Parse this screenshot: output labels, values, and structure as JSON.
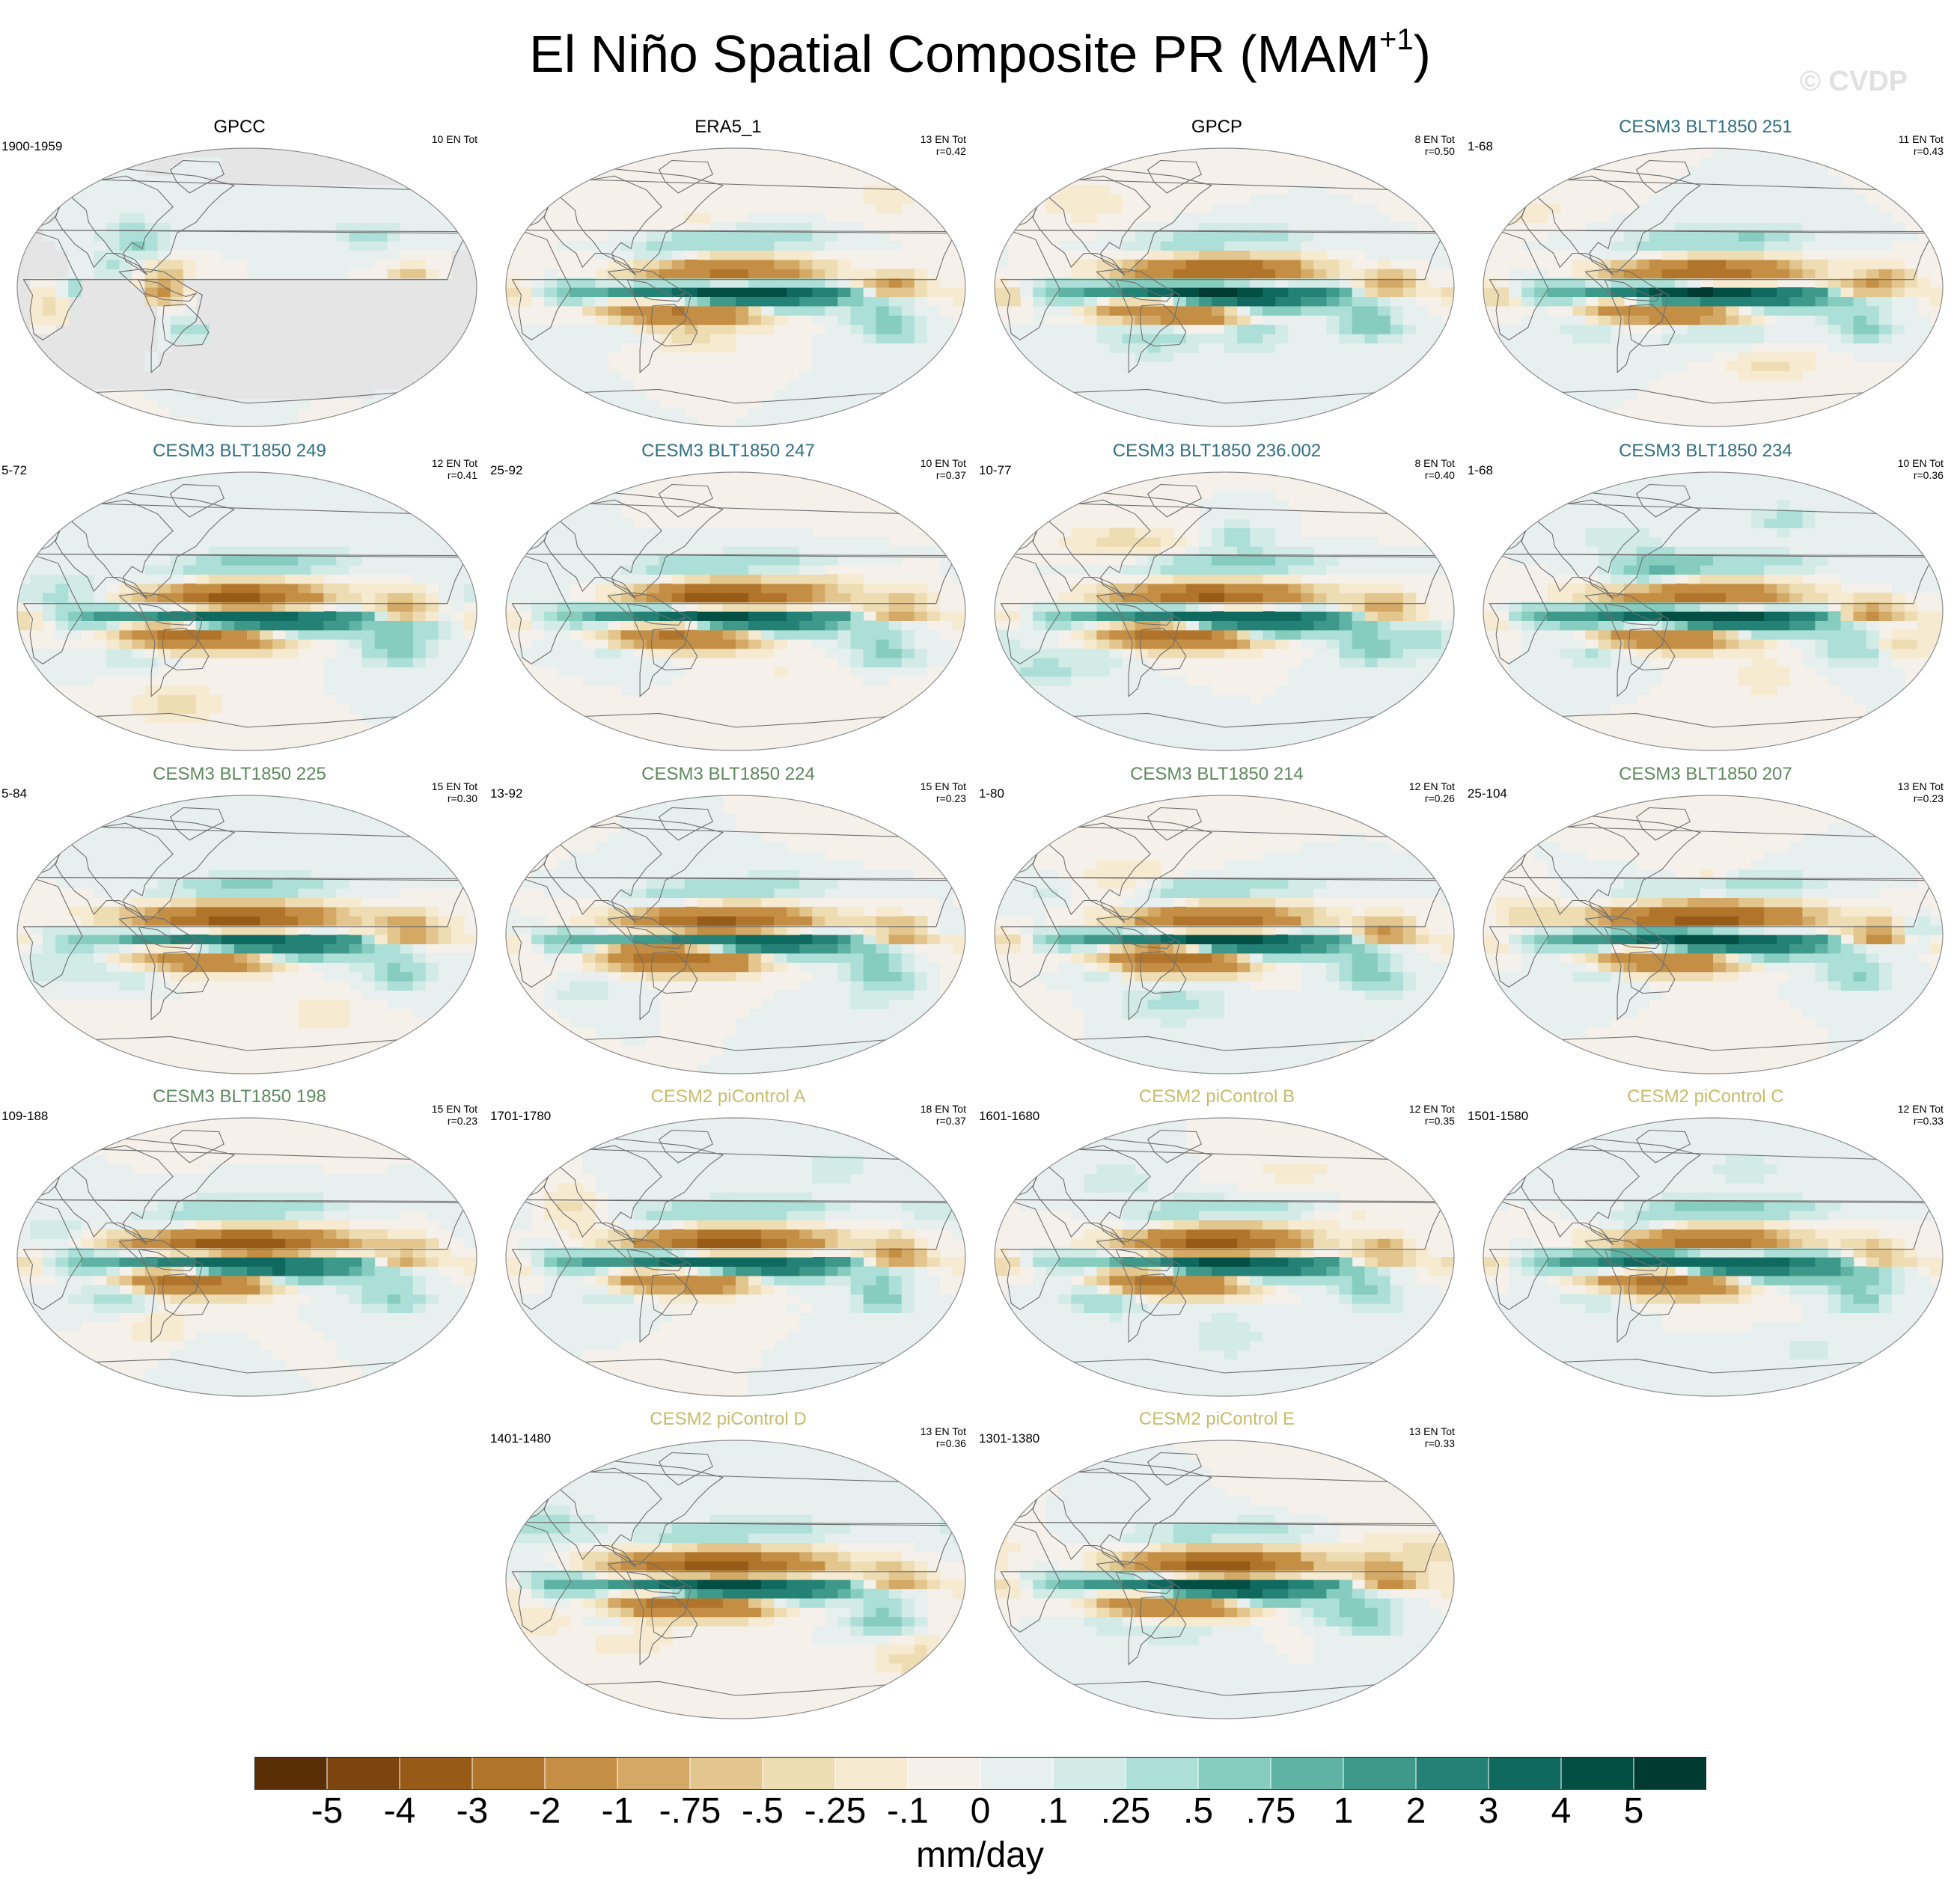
{
  "title": {
    "main": "El Niño Spatial Composite PR (MAM",
    "superscript": "+1",
    "close": ")"
  },
  "watermark": "© CVDP",
  "colors": {
    "observation_title": "#000000",
    "cesm3_blue_title": "#2e6f84",
    "cesm3_green_title": "#5e8a5d",
    "cesm2_title": "#c8bc6a",
    "missing_data": "#e5e5e5",
    "coastline": "#6e6e6e"
  },
  "chart_data": {
    "type": "heatmap",
    "title": "El Niño Spatial Composite PR (MAM+1)",
    "variable": "PR",
    "units": "mm/day",
    "colorbar": {
      "levels": [
        "-5",
        "-4",
        "-3",
        "-2",
        "-1",
        "-.75",
        "-.5",
        "-.25",
        "-.1",
        "0",
        ".1",
        ".25",
        ".5",
        ".75",
        "1",
        "2",
        "3",
        "4",
        "5"
      ],
      "colors": [
        "#5a2e07",
        "#7c4510",
        "#975a17",
        "#b0752a",
        "#c48f45",
        "#d4a965",
        "#e3c68e",
        "#eedcb3",
        "#f6ead1",
        "#f5f1ea",
        "#e8efef",
        "#d2ebe7",
        "#acdfd7",
        "#86cdbf",
        "#5fb3a4",
        "#3f998b",
        "#248175",
        "#0f695e",
        "#034f44",
        "#013a31"
      ]
    },
    "panels": [
      {
        "title": "GPCC",
        "style": "obs",
        "period": "1900-1959",
        "events": "10 EN Tot",
        "r": ""
      },
      {
        "title": "ERA5_1",
        "style": "obs",
        "period": "",
        "events": "13 EN Tot",
        "r": "r=0.42"
      },
      {
        "title": "GPCP",
        "style": "obs",
        "period": "",
        "events": "8 EN Tot",
        "r": "r=0.50"
      },
      {
        "title": "CESM3 BLT1850 251",
        "style": "blue",
        "period": "1-68",
        "events": "11 EN Tot",
        "r": "r=0.43"
      },
      {
        "title": "CESM3 BLT1850 249",
        "style": "blue",
        "period": "5-72",
        "events": "12 EN Tot",
        "r": "r=0.41"
      },
      {
        "title": "CESM3 BLT1850 247",
        "style": "blue",
        "period": "25-92",
        "events": "10 EN Tot",
        "r": "r=0.37"
      },
      {
        "title": "CESM3 BLT1850 236.002",
        "style": "blue",
        "period": "10-77",
        "events": "8 EN Tot",
        "r": "r=0.40"
      },
      {
        "title": "CESM3 BLT1850 234",
        "style": "blue",
        "period": "1-68",
        "events": "10 EN Tot",
        "r": "r=0.36"
      },
      {
        "title": "CESM3 BLT1850 225",
        "style": "green",
        "period": "5-84",
        "events": "15 EN Tot",
        "r": "r=0.30"
      },
      {
        "title": "CESM3 BLT1850 224",
        "style": "green",
        "period": "13-92",
        "events": "15 EN Tot",
        "r": "r=0.23"
      },
      {
        "title": "CESM3 BLT1850 214",
        "style": "green",
        "period": "1-80",
        "events": "12 EN Tot",
        "r": "r=0.26"
      },
      {
        "title": "CESM3 BLT1850 207",
        "style": "green",
        "period": "25-104",
        "events": "13 EN Tot",
        "r": "r=0.23"
      },
      {
        "title": "CESM3 BLT1850 198",
        "style": "green",
        "period": "109-188",
        "events": "15 EN Tot",
        "r": "r=0.23"
      },
      {
        "title": "CESM2 piControl A",
        "style": "yellow",
        "period": "1701-1780",
        "events": "18 EN Tot",
        "r": "r=0.37"
      },
      {
        "title": "CESM2 piControl B",
        "style": "yellow",
        "period": "1601-1680",
        "events": "12 EN Tot",
        "r": "r=0.35"
      },
      {
        "title": "CESM2 piControl C",
        "style": "yellow",
        "period": "1501-1580",
        "events": "12 EN Tot",
        "r": "r=0.33"
      },
      {
        "title": "CESM2 piControl D",
        "style": "yellow",
        "period": "1401-1480",
        "events": "13 EN Tot",
        "r": "r=0.36"
      },
      {
        "title": "CESM2 piControl E",
        "style": "yellow",
        "period": "1301-1380",
        "events": "13 EN Tot",
        "r": "r=0.33"
      }
    ]
  }
}
